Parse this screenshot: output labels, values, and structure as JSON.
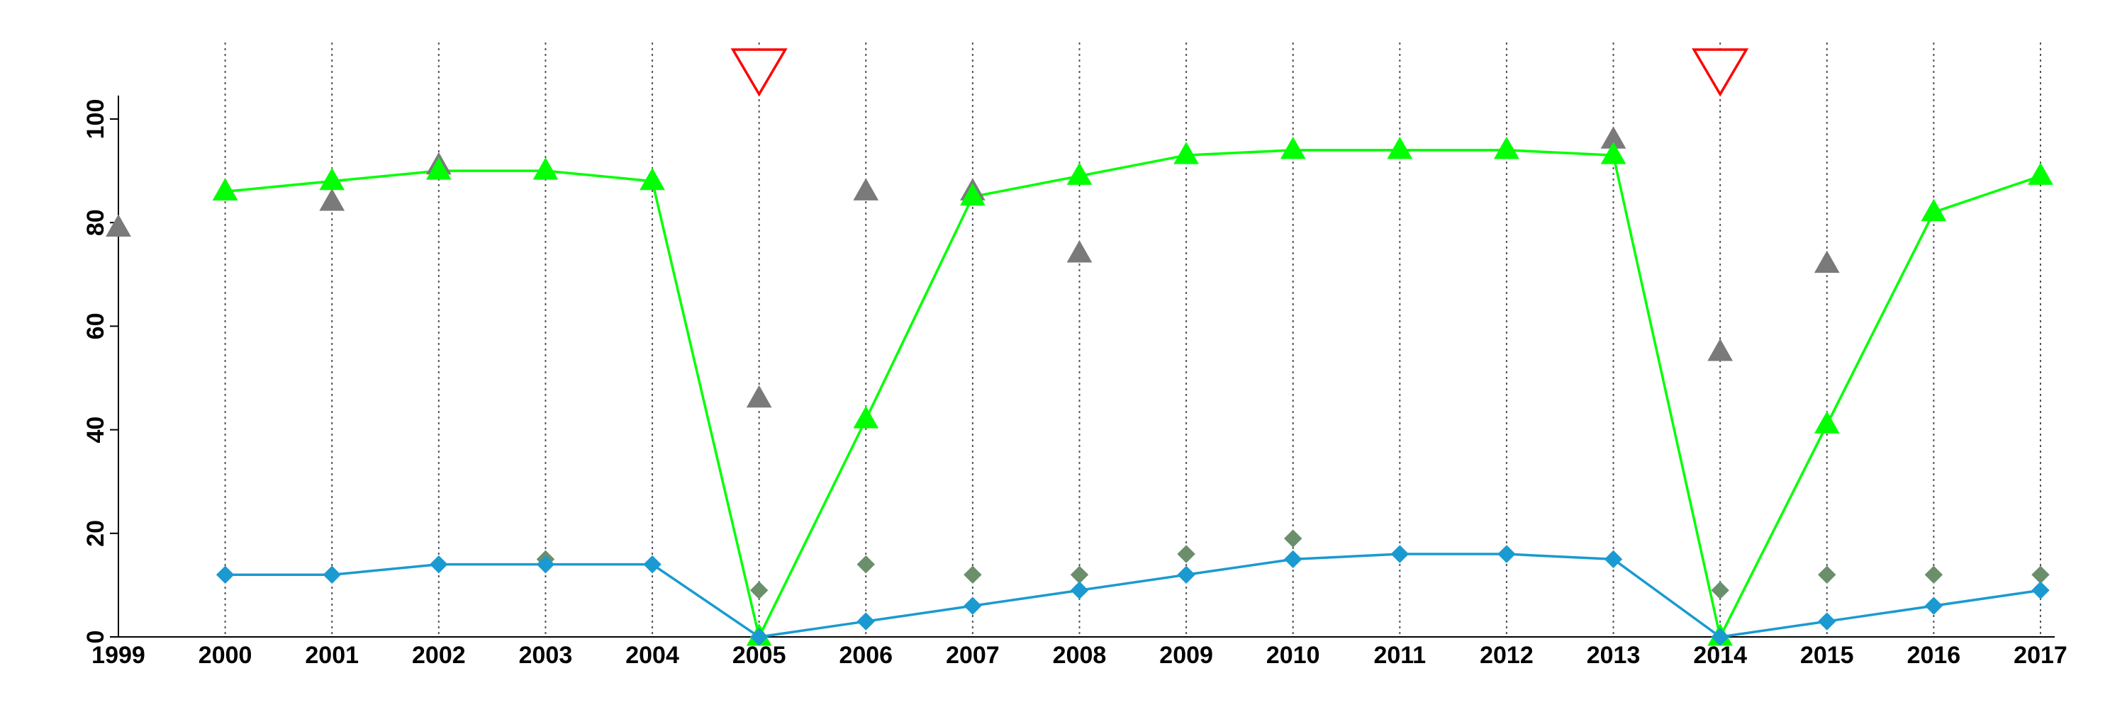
{
  "chart_data": {
    "type": "line",
    "title": "",
    "xlabel": "",
    "ylabel": "",
    "x": [
      1999,
      2000,
      2001,
      2002,
      2003,
      2004,
      2005,
      2006,
      2007,
      2008,
      2009,
      2010,
      2011,
      2012,
      2013,
      2014,
      2015,
      2016,
      2017
    ],
    "x_tick_labels": [
      "1999",
      "2000",
      "2001",
      "2002",
      "2003",
      "2004",
      "2005",
      "2006",
      "2007",
      "2008",
      "2009",
      "2010",
      "2011",
      "2012",
      "2013",
      "2014",
      "2015",
      "2016",
      "2017"
    ],
    "y_ticks": [
      0,
      20,
      40,
      60,
      80,
      100
    ],
    "y_tick_labels": [
      "0",
      "20",
      "40",
      "60",
      "80",
      "100"
    ],
    "xlim": [
      1999,
      2017
    ],
    "ylim": [
      0,
      110
    ],
    "grid": "vertical dotted lines at each year from 2000",
    "legend": "none",
    "series": [
      {
        "marker": "triangle-up",
        "line": true,
        "color": "#00ff00",
        "points": [
          [
            2000,
            86
          ],
          [
            2001,
            88
          ],
          [
            2002,
            90
          ],
          [
            2003,
            90
          ],
          [
            2004,
            88
          ],
          [
            2005,
            0
          ],
          [
            2006,
            42
          ],
          [
            2007,
            85
          ],
          [
            2008,
            89
          ],
          [
            2009,
            93
          ],
          [
            2010,
            94
          ],
          [
            2011,
            94
          ],
          [
            2012,
            94
          ],
          [
            2013,
            93
          ],
          [
            2014,
            0
          ],
          [
            2015,
            41
          ],
          [
            2016,
            82
          ],
          [
            2017,
            89
          ]
        ]
      },
      {
        "marker": "triangle-up",
        "line": false,
        "color": "#7a7a7a",
        "points": [
          [
            1999,
            79
          ],
          [
            2000,
            86
          ],
          [
            2001,
            84
          ],
          [
            2002,
            91
          ],
          [
            2005,
            46
          ],
          [
            2006,
            86
          ],
          [
            2007,
            86
          ],
          [
            2008,
            74
          ],
          [
            2012,
            94
          ],
          [
            2013,
            96
          ],
          [
            2014,
            55
          ],
          [
            2015,
            72
          ]
        ]
      },
      {
        "marker": "diamond",
        "line": true,
        "color": "#1a9ad0",
        "points": [
          [
            2000,
            12
          ],
          [
            2001,
            12
          ],
          [
            2002,
            14
          ],
          [
            2003,
            14
          ],
          [
            2004,
            14
          ],
          [
            2005,
            0
          ],
          [
            2006,
            3
          ],
          [
            2007,
            6
          ],
          [
            2008,
            9
          ],
          [
            2009,
            12
          ],
          [
            2010,
            15
          ],
          [
            2011,
            16
          ],
          [
            2012,
            16
          ],
          [
            2013,
            15
          ],
          [
            2014,
            0
          ],
          [
            2015,
            3
          ],
          [
            2016,
            6
          ],
          [
            2017,
            9
          ]
        ]
      },
      {
        "marker": "diamond",
        "line": false,
        "color": "#6b8e6b",
        "points": [
          [
            2003,
            15
          ],
          [
            2005,
            9
          ],
          [
            2006,
            14
          ],
          [
            2007,
            12
          ],
          [
            2008,
            12
          ],
          [
            2009,
            16
          ],
          [
            2010,
            19
          ],
          [
            2014,
            9
          ],
          [
            2015,
            12
          ],
          [
            2016,
            12
          ],
          [
            2017,
            12
          ]
        ]
      }
    ],
    "annotations": [
      {
        "marker": "triangle-down-open",
        "color": "#ff0000",
        "x": 2005
      },
      {
        "marker": "triangle-down-open",
        "color": "#ff0000",
        "x": 2014
      }
    ]
  }
}
